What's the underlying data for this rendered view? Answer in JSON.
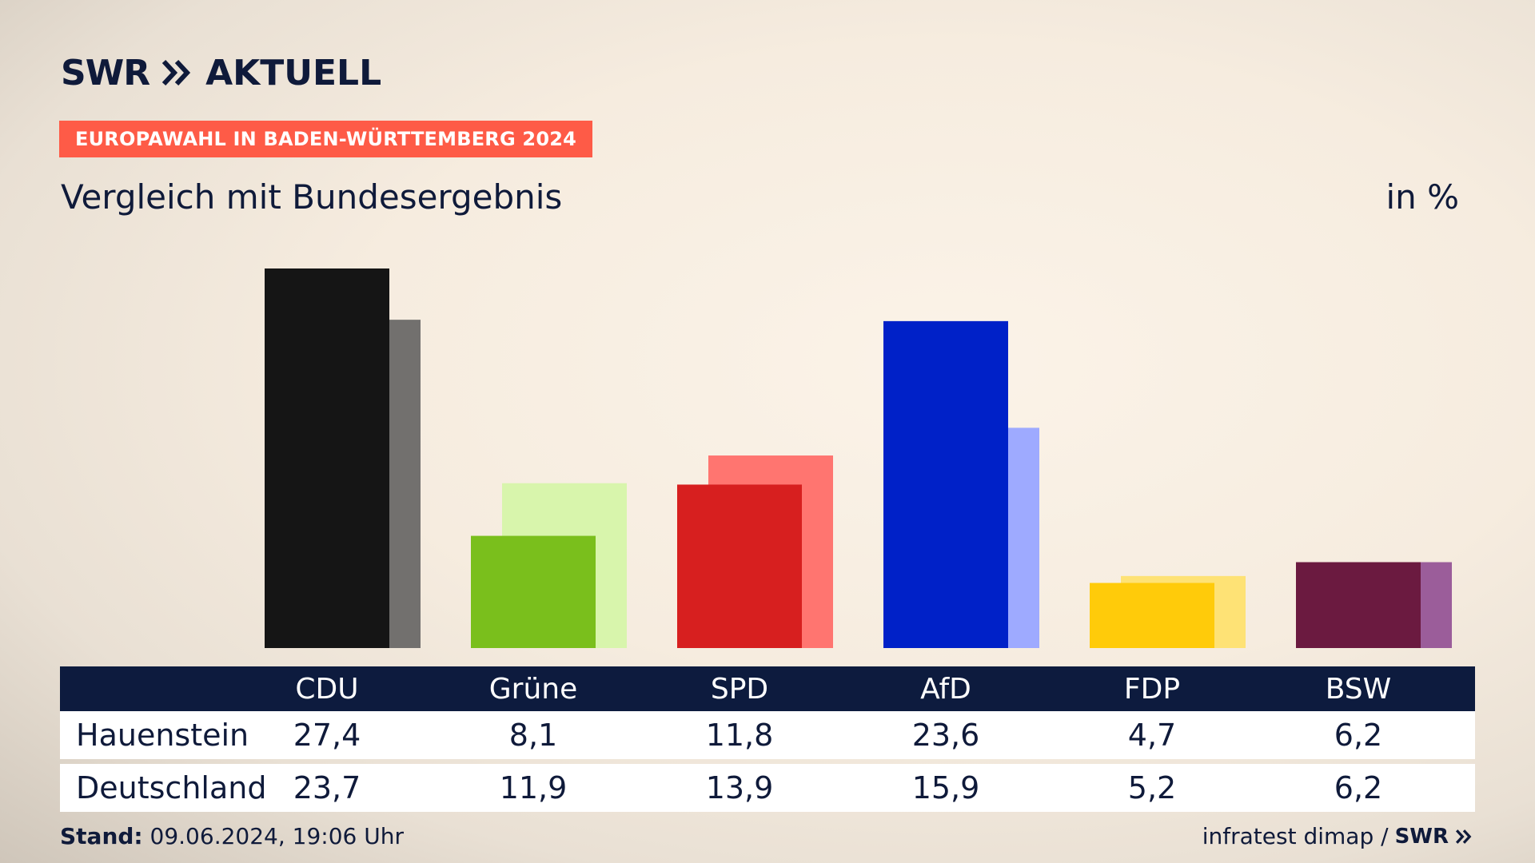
{
  "header": {
    "brand": "SWR",
    "brand_suffix": "AKTUELL",
    "badge": "EUROPAWAHL IN BADEN-WÜRTTEMBERG 2024",
    "subtitle": "Vergleich mit Bundesergebnis",
    "unit": "in %"
  },
  "footer": {
    "stand_label": "Stand:",
    "stand_value": "09.06.2024, 19:06 Uhr",
    "source": "infratest dimap /",
    "source_brand": "SWR"
  },
  "table": {
    "row_labels": [
      "Hauenstein",
      "Deutschland"
    ]
  },
  "chart_data": {
    "type": "bar",
    "categories": [
      "CDU",
      "Grüne",
      "SPD",
      "AfD",
      "FDP",
      "BSW"
    ],
    "series": [
      {
        "name": "Hauenstein",
        "values": [
          27.4,
          8.1,
          11.8,
          23.6,
          4.7,
          6.2
        ]
      },
      {
        "name": "Deutschland",
        "values": [
          23.7,
          11.9,
          13.9,
          15.9,
          5.2,
          6.2
        ]
      }
    ],
    "value_labels": {
      "Hauenstein": [
        "27,4",
        "8,1",
        "11,8",
        "23,6",
        "4,7",
        "6,2"
      ],
      "Deutschland": [
        "23,7",
        "11,9",
        "13,9",
        "15,9",
        "5,2",
        "6,2"
      ]
    },
    "colors_primary": [
      "#151515",
      "#7abf1c",
      "#d71f1f",
      "#0021c8",
      "#ffcb0a",
      "#6b1a40"
    ],
    "colors_secondary": [
      "#72706e",
      "#d8f5ac",
      "#ff7570",
      "#9eaaff",
      "#fee275",
      "#9b5d9a"
    ],
    "ylim": [
      0,
      27.4
    ],
    "grid": false,
    "legend": "table below"
  }
}
